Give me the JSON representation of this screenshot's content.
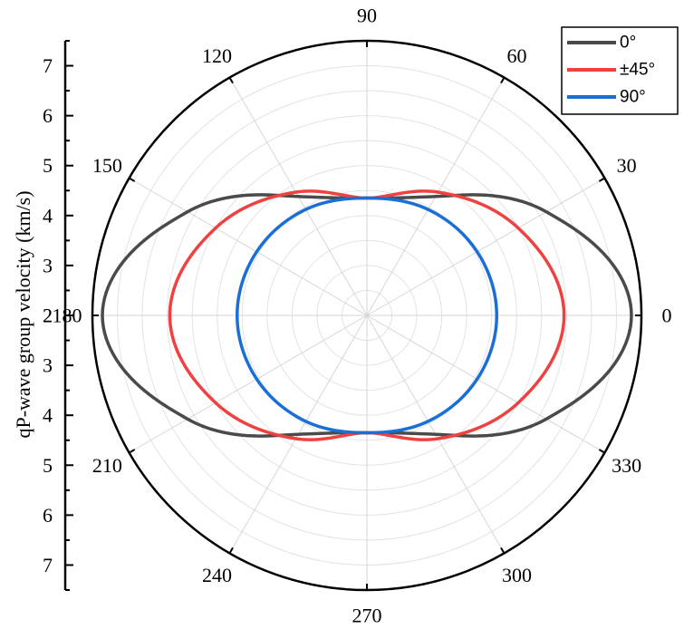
{
  "chart_data": {
    "type": "polar",
    "angle_unit": "degrees",
    "angle_ticks": [
      0,
      30,
      60,
      90,
      120,
      150,
      180,
      210,
      240,
      270,
      300,
      330
    ],
    "radial_axis": {
      "label": "qP-wave group velocity (km/s)",
      "range": [
        2,
        7.5
      ],
      "tick_labels": [
        "2",
        "3",
        "4",
        "5",
        "6",
        "7"
      ]
    },
    "grid": true,
    "legend_position": "top-right",
    "series": [
      {
        "name": "0°",
        "color": "#4a4a4a",
        "x": [
          0,
          30,
          60,
          90,
          120,
          150,
          180,
          210,
          240,
          270,
          300,
          330
        ],
        "y": [
          7.3,
          6.15,
          4.75,
          4.35,
          4.75,
          6.15,
          7.3,
          6.15,
          4.75,
          4.35,
          4.75,
          6.15
        ]
      },
      {
        "name": "±45°",
        "color": "#f04040",
        "x": [
          0,
          30,
          60,
          90,
          120,
          150,
          180,
          210,
          240,
          270,
          300,
          330
        ],
        "y": [
          5.95,
          5.5,
          4.85,
          4.35,
          4.85,
          5.5,
          5.95,
          5.5,
          4.85,
          4.35,
          4.85,
          5.5
        ]
      },
      {
        "name": "90°",
        "color": "#1a6fd6",
        "x": [
          0,
          30,
          60,
          90,
          120,
          150,
          180,
          210,
          240,
          270,
          300,
          330
        ],
        "y": [
          4.6,
          4.55,
          4.45,
          4.35,
          4.45,
          4.55,
          4.6,
          4.55,
          4.45,
          4.35,
          4.45,
          4.55
        ]
      }
    ]
  }
}
